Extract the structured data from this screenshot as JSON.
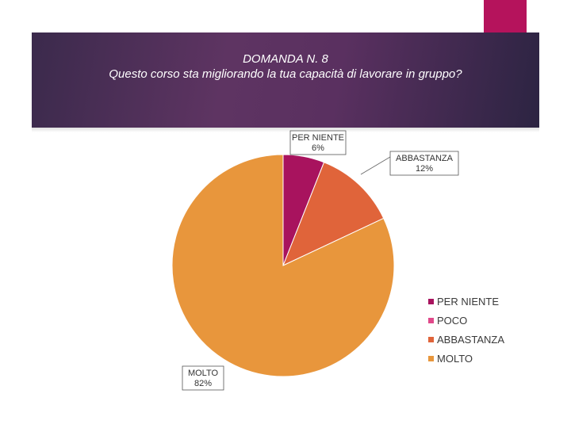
{
  "header": {
    "title_line1": "DOMANDA N. 8",
    "title_line2": "Questo corso sta migliorando la tua capacità di lavorare in gruppo?"
  },
  "colors": {
    "accent": "#b5135c",
    "band_dark": "#3b2a4c",
    "band_mid": "#5e3462"
  },
  "chart_data": {
    "type": "pie",
    "title": "DOMANDA N. 8 Questo corso sta migliorando la tua capacità di lavorare in gruppo?",
    "categories": [
      "PER NIENTE",
      "POCO",
      "ABBASTANZA",
      "MOLTO"
    ],
    "values": [
      6,
      0,
      12,
      82
    ],
    "value_labels": [
      "6%",
      "0%",
      "12%",
      "82%"
    ],
    "colors": [
      "#a8135e",
      "#e0498a",
      "#e0643a",
      "#e8963c"
    ],
    "data_labels": [
      {
        "name": "PER NIENTE",
        "text": "6%"
      },
      {
        "name": "ABBASTANZA",
        "text": "12%"
      },
      {
        "name": "MOLTO",
        "text": "82%"
      }
    ],
    "legend_placement": "right"
  }
}
